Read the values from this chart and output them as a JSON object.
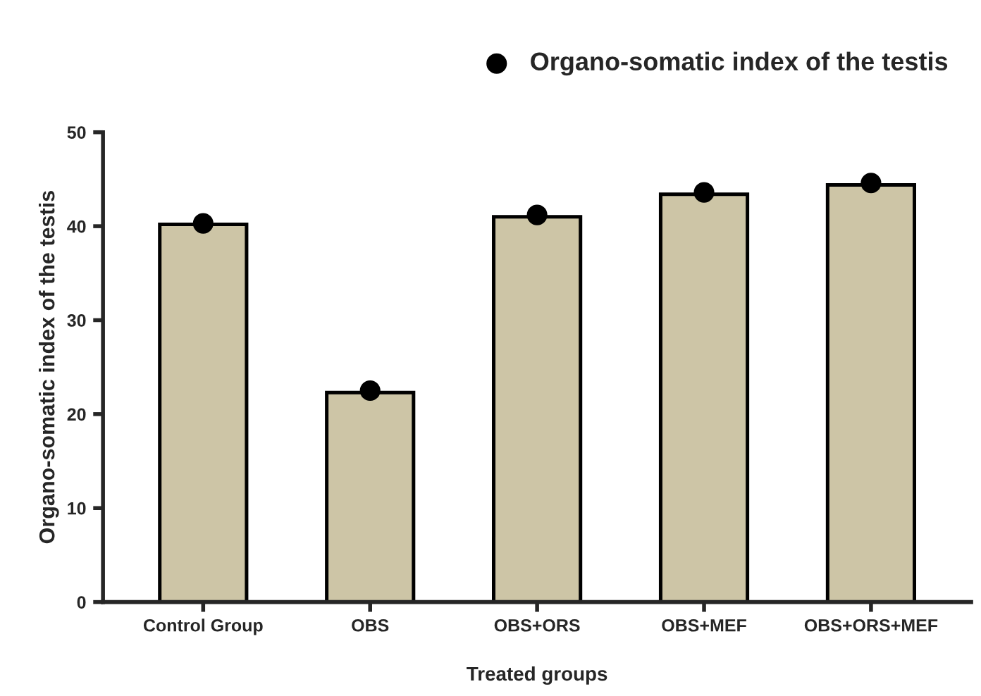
{
  "chart_data": {
    "type": "bar",
    "xlabel": "Treated groups",
    "ylabel": "Organo-somatic index of the testis",
    "categories": [
      "Control Group",
      "OBS",
      "OBS+ORS",
      "OBS+MEF",
      "OBS+ORS+MEF"
    ],
    "series": [
      {
        "color": "#cdc5a6",
        "values": [
          40.2,
          22.3,
          41.0,
          43.4,
          44.4
        ]
      },
      {
        "type": "scatter",
        "name": "Organo-somatic index of the testis",
        "color": "#000000",
        "values": [
          40.3,
          22.5,
          41.2,
          43.6,
          44.6
        ]
      }
    ],
    "ylim": [
      0,
      50
    ],
    "yticks": [
      0,
      10,
      20,
      30,
      40,
      50
    ],
    "grid": false,
    "legend": "top right",
    "marker": "circle"
  }
}
